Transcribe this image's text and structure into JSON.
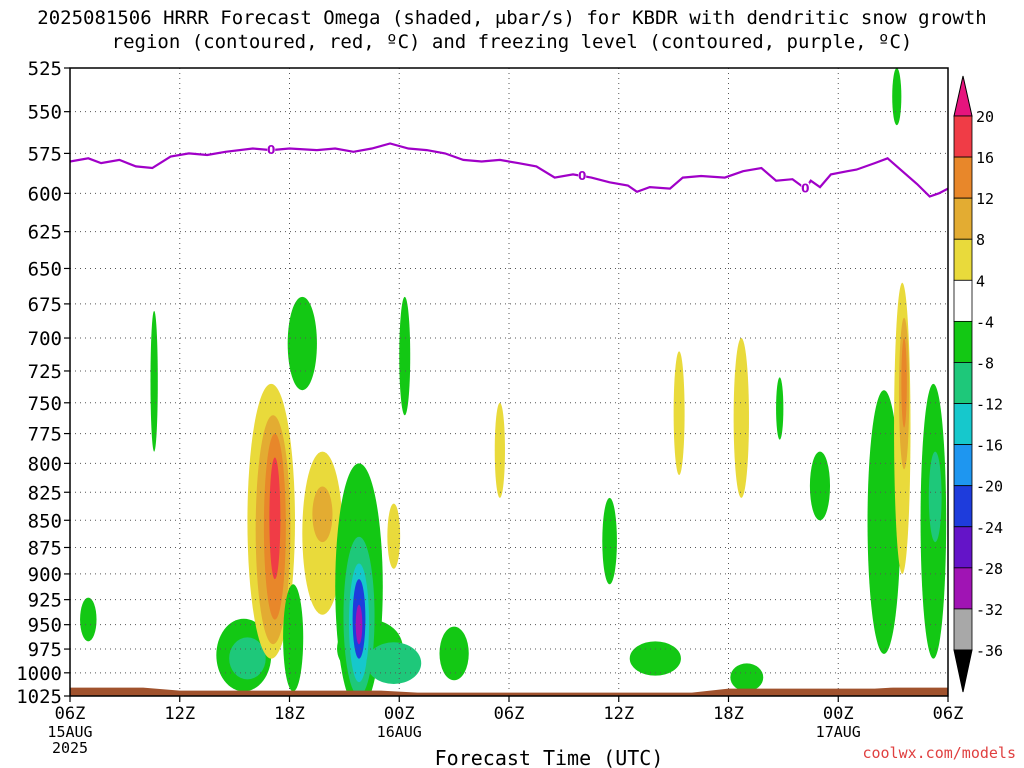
{
  "title": "2025081506 HRRR Forecast Omega (shaded, μbar/s) for KBDR with dendritic snow growth region (contoured, red, ºC) and freezing level (contoured, purple, ºC)",
  "credit": "coolwx.com/models",
  "chart_data": {
    "type": "heatmap",
    "title": "2025081506 HRRR Forecast Omega (shaded, μbar/s) for KBDR with dendritic snow growth region (contoured, red, ºC) and freezing level (contoured, purple, ºC)",
    "xlabel": "Forecast Time (UTC)",
    "ylabel": "",
    "x_range_hours": [
      0,
      48
    ],
    "ylim": [
      1025,
      525
    ],
    "y_scale": "log",
    "y_ticks": [
      525,
      550,
      575,
      600,
      625,
      650,
      675,
      700,
      725,
      750,
      775,
      800,
      825,
      850,
      875,
      900,
      925,
      950,
      975,
      1000,
      1025
    ],
    "x_ticks": [
      {
        "hour": 0,
        "label": "06Z",
        "sub": [
          "15AUG",
          "2025"
        ]
      },
      {
        "hour": 6,
        "label": "12Z",
        "sub": []
      },
      {
        "hour": 12,
        "label": "18Z",
        "sub": []
      },
      {
        "hour": 18,
        "label": "00Z",
        "sub": [
          "16AUG"
        ]
      },
      {
        "hour": 24,
        "label": "06Z",
        "sub": []
      },
      {
        "hour": 30,
        "label": "12Z",
        "sub": []
      },
      {
        "hour": 36,
        "label": "18Z",
        "sub": []
      },
      {
        "hour": 42,
        "label": "00Z",
        "sub": [
          "17AUG"
        ]
      },
      {
        "hour": 48,
        "label": "06Z",
        "sub": []
      }
    ],
    "grid": true,
    "freezing_level": {
      "label": "0",
      "color": "#a000c8",
      "points": [
        [
          0,
          580
        ],
        [
          1,
          578
        ],
        [
          1.7,
          581
        ],
        [
          2.7,
          579
        ],
        [
          3.6,
          583
        ],
        [
          4.5,
          584
        ],
        [
          5.5,
          577
        ],
        [
          6.5,
          575
        ],
        [
          7.5,
          576
        ],
        [
          8.5,
          574
        ],
        [
          10,
          572
        ],
        [
          11,
          573
        ],
        [
          12,
          572
        ],
        [
          13.5,
          573
        ],
        [
          14.5,
          572
        ],
        [
          15.5,
          574
        ],
        [
          16.5,
          572
        ],
        [
          17.5,
          569
        ],
        [
          18.5,
          572
        ],
        [
          19.5,
          573
        ],
        [
          20.5,
          575
        ],
        [
          21.5,
          579
        ],
        [
          22.5,
          580
        ],
        [
          23.5,
          579
        ],
        [
          24.5,
          581
        ],
        [
          25.5,
          583
        ],
        [
          26.5,
          590
        ],
        [
          27.5,
          588
        ],
        [
          28.5,
          590
        ],
        [
          29.5,
          593
        ],
        [
          30.5,
          595
        ],
        [
          31,
          599
        ],
        [
          31.7,
          596
        ],
        [
          32.8,
          597
        ],
        [
          33.5,
          590
        ],
        [
          34.5,
          589
        ],
        [
          35.8,
          590
        ],
        [
          36.8,
          586
        ],
        [
          37.8,
          584
        ],
        [
          38.6,
          592
        ],
        [
          39.5,
          591
        ],
        [
          40.2,
          597
        ],
        [
          40.5,
          592
        ],
        [
          41,
          596
        ],
        [
          41.6,
          588
        ],
        [
          42.5,
          586
        ],
        [
          43,
          585
        ],
        [
          44,
          581
        ],
        [
          44.7,
          578
        ],
        [
          45.5,
          586
        ],
        [
          46.3,
          594
        ],
        [
          47,
          602
        ],
        [
          47.5,
          600
        ],
        [
          48,
          597
        ]
      ],
      "label_hours": [
        11,
        28,
        40.2
      ]
    },
    "omega_colorbar": {
      "ticks": [
        20,
        16,
        12,
        8,
        4,
        -4,
        -8,
        -12,
        -16,
        -20,
        -24,
        -28,
        -32,
        -36
      ],
      "bins": [
        {
          "lo": 16,
          "hi": 20,
          "color": "#f03c46"
        },
        {
          "lo": 12,
          "hi": 16,
          "color": "#e8872a"
        },
        {
          "lo": 8,
          "hi": 12,
          "color": "#e3ac32"
        },
        {
          "lo": 4,
          "hi": 8,
          "color": "#e9da3b"
        },
        {
          "lo": -4,
          "hi": 4,
          "color": "#ffffff"
        },
        {
          "lo": -8,
          "hi": -4,
          "color": "#13c814"
        },
        {
          "lo": -12,
          "hi": -8,
          "color": "#1ec87a"
        },
        {
          "lo": -16,
          "hi": -12,
          "color": "#16c8cc"
        },
        {
          "lo": -20,
          "hi": -16,
          "color": "#1e96f0"
        },
        {
          "lo": -24,
          "hi": -20,
          "color": "#1e3cdc"
        },
        {
          "lo": -28,
          "hi": -24,
          "color": "#6414c8"
        },
        {
          "lo": -32,
          "hi": -28,
          "color": "#a014b4"
        },
        {
          "lo": -36,
          "hi": -32,
          "color": "#a8a8a8"
        }
      ],
      "top_arrow_color": "#e6147d",
      "bottom_arrow_color": "#000000"
    },
    "omega_cells": [
      {
        "h": 1.0,
        "p": 945,
        "hw": 0.45,
        "hh": 22,
        "v": -6
      },
      {
        "h": 4.6,
        "p": 735,
        "hw": 0.2,
        "hh": 55,
        "v": -6
      },
      {
        "h": 9.5,
        "p": 982,
        "hw": 1.5,
        "hh": 38,
        "v": -6
      },
      {
        "h": 9.7,
        "p": 985,
        "hw": 1.0,
        "hh": 22,
        "v": -10
      },
      {
        "h": 11.0,
        "p": 860,
        "hw": 1.3,
        "hh": 125,
        "v": 6
      },
      {
        "h": 11.1,
        "p": 865,
        "hw": 0.95,
        "hh": 105,
        "v": 10
      },
      {
        "h": 11.2,
        "p": 860,
        "hw": 0.6,
        "hh": 85,
        "v": 14
      },
      {
        "h": 11.2,
        "p": 850,
        "hw": 0.3,
        "hh": 55,
        "v": 18
      },
      {
        "h": 12.2,
        "p": 965,
        "hw": 0.55,
        "hh": 55,
        "v": -6
      },
      {
        "h": 12.7,
        "p": 705,
        "hw": 0.8,
        "hh": 35,
        "v": -6
      },
      {
        "h": 13.8,
        "p": 865,
        "hw": 1.1,
        "hh": 75,
        "v": 6
      },
      {
        "h": 13.8,
        "p": 845,
        "hw": 0.55,
        "hh": 25,
        "v": 10
      },
      {
        "h": 15.8,
        "p": 920,
        "hw": 1.3,
        "hh": 120,
        "v": -6
      },
      {
        "h": 16.4,
        "p": 975,
        "hw": 1.8,
        "hh": 30,
        "v": -6
      },
      {
        "h": 15.8,
        "p": 945,
        "hw": 0.85,
        "hh": 80,
        "v": -10
      },
      {
        "h": 15.8,
        "p": 950,
        "hw": 0.55,
        "hh": 60,
        "v": -14
      },
      {
        "h": 15.8,
        "p": 945,
        "hw": 0.35,
        "hh": 40,
        "v": -22
      },
      {
        "h": 15.8,
        "p": 950,
        "hw": 0.18,
        "hh": 20,
        "v": -30
      },
      {
        "h": 17.7,
        "p": 990,
        "hw": 1.5,
        "hh": 22,
        "v": -10
      },
      {
        "h": 18.3,
        "p": 715,
        "hw": 0.3,
        "hh": 45,
        "v": -6
      },
      {
        "h": 17.7,
        "p": 865,
        "hw": 0.35,
        "hh": 30,
        "v": 6
      },
      {
        "h": 21.0,
        "p": 980,
        "hw": 0.8,
        "hh": 28,
        "v": -6
      },
      {
        "h": 23.5,
        "p": 790,
        "hw": 0.28,
        "hh": 40,
        "v": 6
      },
      {
        "h": 32.0,
        "p": 985,
        "hw": 1.4,
        "hh": 18,
        "v": -6
      },
      {
        "h": 29.5,
        "p": 870,
        "hw": 0.4,
        "hh": 40,
        "v": -6
      },
      {
        "h": 33.3,
        "p": 760,
        "hw": 0.3,
        "hh": 50,
        "v": 6
      },
      {
        "h": 36.7,
        "p": 765,
        "hw": 0.42,
        "hh": 65,
        "v": 6
      },
      {
        "h": 37.0,
        "p": 1005,
        "hw": 0.9,
        "hh": 15,
        "v": -6
      },
      {
        "h": 38.8,
        "p": 755,
        "hw": 0.2,
        "hh": 25,
        "v": -6
      },
      {
        "h": 41.0,
        "p": 820,
        "hw": 0.55,
        "hh": 30,
        "v": -6
      },
      {
        "h": 44.5,
        "p": 860,
        "hw": 0.9,
        "hh": 120,
        "v": -6
      },
      {
        "h": 47.2,
        "p": 860,
        "hw": 0.7,
        "hh": 125,
        "v": -6
      },
      {
        "h": 47.3,
        "p": 830,
        "hw": 0.35,
        "hh": 40,
        "v": -10
      },
      {
        "h": 45.5,
        "p": 780,
        "hw": 0.45,
        "hh": 120,
        "v": 6
      },
      {
        "h": 45.6,
        "p": 745,
        "hw": 0.28,
        "hh": 60,
        "v": 10
      },
      {
        "h": 45.6,
        "p": 735,
        "hw": 0.15,
        "hh": 35,
        "v": 14
      },
      {
        "h": 45.2,
        "p": 540,
        "hw": 0.25,
        "hh": 18,
        "v": -6
      }
    ],
    "terrain_top_mb": 1018,
    "terrain_color": "#a0522d"
  }
}
